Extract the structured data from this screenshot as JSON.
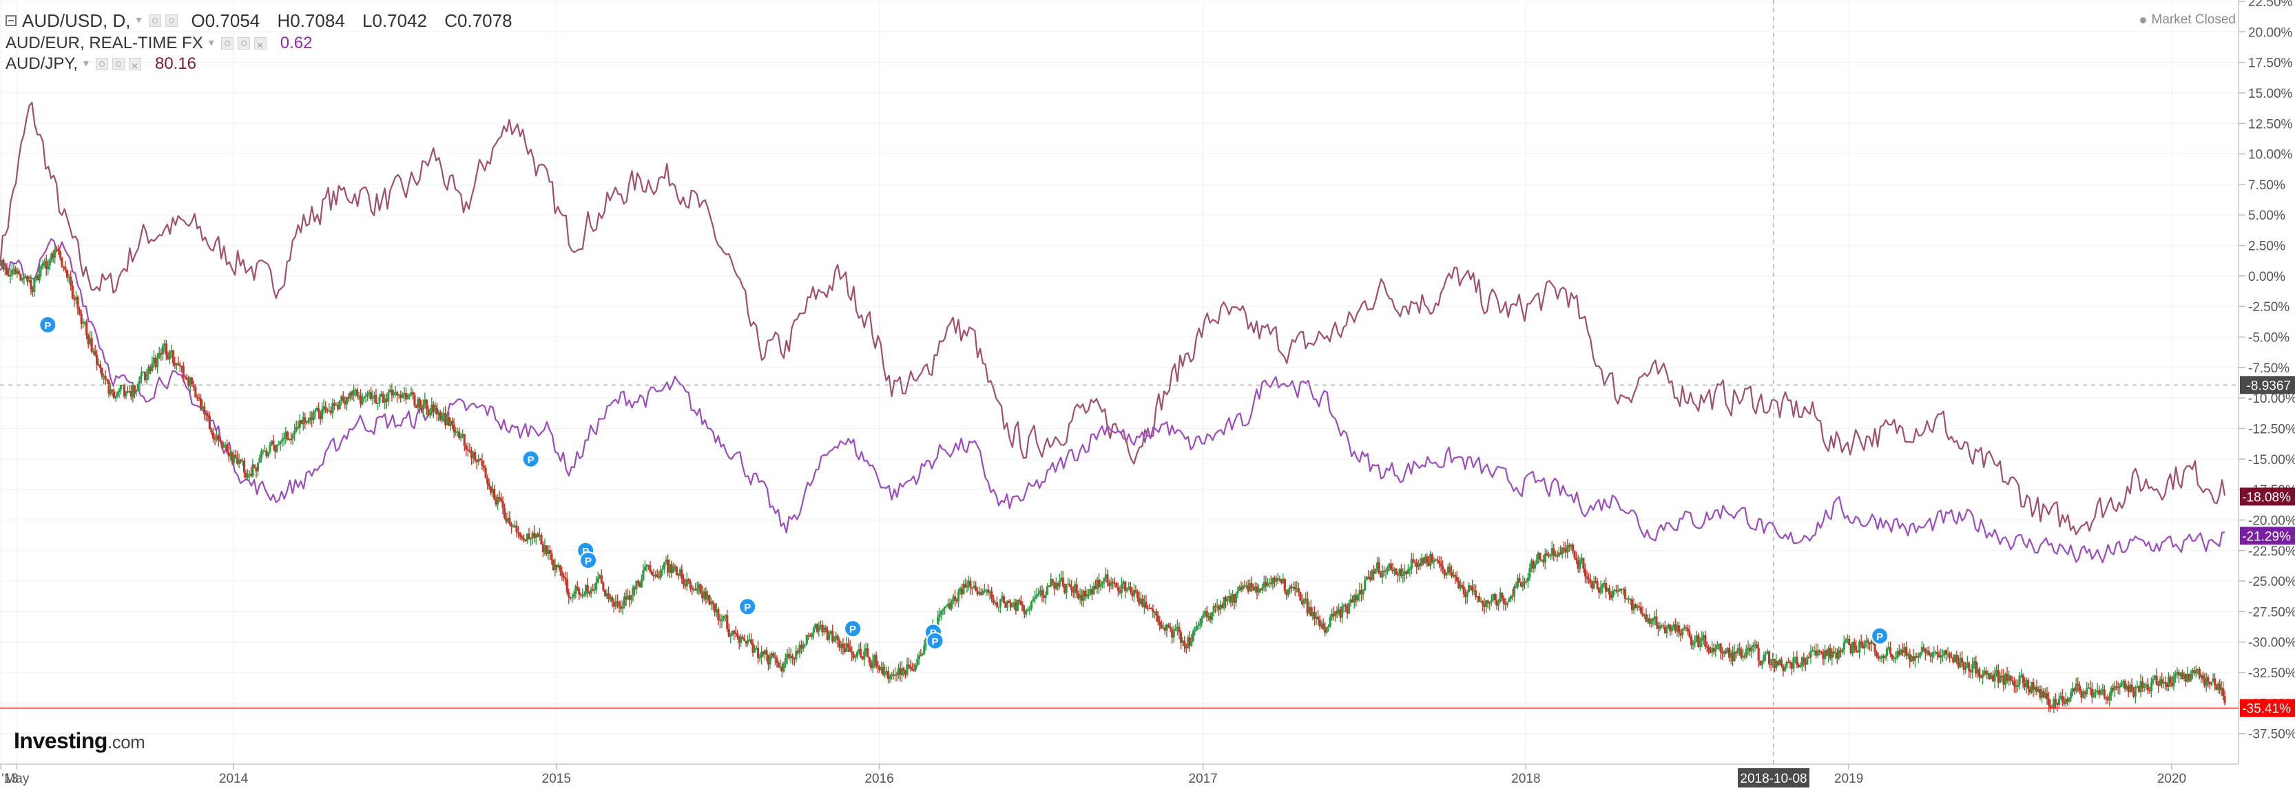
{
  "legend": {
    "main_symbol": "AUD/USD, D,",
    "open": "O0.7054",
    "high": "H0.7084",
    "low": "L0.7042",
    "close": "C0.7078",
    "eur_symbol": "AUD/EUR, REAL-TIME FX",
    "eur_value": "0.62",
    "jpy_symbol": "AUD/JPY,",
    "jpy_value": "80.16"
  },
  "status": {
    "market": "Market Closed"
  },
  "logo": {
    "main": "Investing",
    "suffix": ".com"
  },
  "colors": {
    "up": "#26a69a",
    "down": "#ef5350",
    "candle_up": "#2e9b45",
    "candle_down": "#c0392b",
    "eur": "#9b4dbb",
    "jpy": "#a05068",
    "badge_usd": "#ff0000",
    "badge_eur": "#7b1fa2",
    "badge_jpy": "#7a0f2d",
    "marker": "#2196f3",
    "grid": "#efefef",
    "axis_text": "#555555"
  },
  "crosshair": {
    "price_label": "-8.9367",
    "date_label": "2018-10-08"
  },
  "chart_data": {
    "type": "line",
    "title": "",
    "ylabel": "",
    "xlabel": "",
    "y_unit": "percent change",
    "ylim": [
      -40,
      22.5
    ],
    "xlim": [
      "2013-04-12",
      "2020-03-15"
    ],
    "y_tick_labels": [
      "22.50%",
      "20.00%",
      "17.50%",
      "15.00%",
      "12.50%",
      "10.00%",
      "7.50%",
      "5.00%",
      "2.50%",
      "0.00%",
      "-2.50%",
      "-5.00%",
      "-7.50%",
      "-10.00%",
      "-12.50%",
      "-15.00%",
      "-17.50%",
      "-20.00%",
      "-22.50%",
      "-25.00%",
      "-27.50%",
      "-30.00%",
      "-32.50%",
      "-35.00%",
      "-37.50%"
    ],
    "y_tick_values": [
      22.5,
      20,
      17.5,
      15,
      12.5,
      10,
      7.5,
      5,
      2.5,
      0,
      -2.5,
      -5,
      -7.5,
      -10,
      -12.5,
      -15,
      -17.5,
      -20,
      -22.5,
      -25,
      -27.5,
      -30,
      -32.5,
      -35,
      -37.5
    ],
    "x_tick_labels": [
      "'13",
      "May",
      "2014",
      "2015",
      "2016",
      "2017",
      "2018",
      "2019",
      "2020"
    ],
    "x_tick_dates": [
      "2013-04-13",
      "2013-05-01",
      "2014-01-01",
      "2015-01-01",
      "2016-01-01",
      "2017-01-01",
      "2018-01-01",
      "2019-01-01",
      "2020-01-01"
    ],
    "grid": true,
    "series": [
      {
        "name": "AUD/USD",
        "style": "candles",
        "x": [
          "2013-04-12",
          "2013-05-15",
          "2013-06-15",
          "2013-07-15",
          "2013-08-15",
          "2013-09-15",
          "2013-10-15",
          "2013-11-15",
          "2013-12-15",
          "2014-01-15",
          "2014-02-15",
          "2014-03-15",
          "2014-04-15",
          "2014-05-15",
          "2014-06-15",
          "2014-07-15",
          "2014-08-15",
          "2014-09-15",
          "2014-10-15",
          "2014-11-15",
          "2014-12-15",
          "2015-01-15",
          "2015-02-15",
          "2015-03-15",
          "2015-04-15",
          "2015-05-15",
          "2015-06-15",
          "2015-07-15",
          "2015-08-15",
          "2015-09-15",
          "2015-10-15",
          "2015-11-15",
          "2015-12-15",
          "2016-01-15",
          "2016-02-15",
          "2016-03-15",
          "2016-04-15",
          "2016-05-15",
          "2016-06-15",
          "2016-07-15",
          "2016-08-15",
          "2016-09-15",
          "2016-10-15",
          "2016-11-15",
          "2016-12-15",
          "2017-01-15",
          "2017-02-15",
          "2017-03-15",
          "2017-04-15",
          "2017-05-15",
          "2017-06-15",
          "2017-07-15",
          "2017-08-15",
          "2017-09-15",
          "2017-10-15",
          "2017-11-15",
          "2017-12-15",
          "2018-01-15",
          "2018-02-15",
          "2018-03-15",
          "2018-04-15",
          "2018-05-15",
          "2018-06-15",
          "2018-07-15",
          "2018-08-15",
          "2018-09-15",
          "2018-10-15",
          "2018-11-15",
          "2018-12-15",
          "2019-01-15",
          "2019-02-15",
          "2019-03-15",
          "2019-04-15",
          "2019-05-15",
          "2019-06-15",
          "2019-07-15",
          "2019-08-15",
          "2019-09-15",
          "2019-10-15",
          "2019-11-15",
          "2019-12-15",
          "2020-01-15",
          "2020-02-15",
          "2020-03-01"
        ],
        "y": [
          1,
          -1,
          2,
          -4,
          -10,
          -9,
          -6,
          -9,
          -14,
          -16,
          -14,
          -12,
          -11,
          -10,
          -10,
          -10,
          -11,
          -13,
          -17,
          -21,
          -22,
          -26,
          -25,
          -27,
          -24,
          -24,
          -26,
          -29,
          -31,
          -32,
          -29,
          -30,
          -31,
          -33,
          -31,
          -27,
          -25,
          -27,
          -27,
          -25,
          -26,
          -25,
          -26,
          -29,
          -30,
          -27,
          -26,
          -25,
          -26,
          -29,
          -27,
          -24,
          -24,
          -23,
          -25,
          -27,
          -26,
          -23,
          -22,
          -25,
          -26,
          -28,
          -29,
          -30,
          -31,
          -31,
          -32,
          -31,
          -31,
          -30,
          -31,
          -31,
          -31,
          -32,
          -33,
          -33,
          -35,
          -34,
          -34,
          -34,
          -33,
          -33,
          -33,
          -35
        ]
      },
      {
        "name": "AUD/EUR",
        "style": "line",
        "x": [
          "2013-04-12",
          "2013-05-15",
          "2013-06-15",
          "2013-07-15",
          "2013-08-15",
          "2013-09-15",
          "2013-10-15",
          "2013-11-15",
          "2013-12-15",
          "2014-01-15",
          "2014-02-15",
          "2014-03-15",
          "2014-04-15",
          "2014-05-15",
          "2014-06-15",
          "2014-07-15",
          "2014-08-15",
          "2014-09-15",
          "2014-10-15",
          "2014-11-15",
          "2014-12-15",
          "2015-01-15",
          "2015-02-15",
          "2015-03-15",
          "2015-04-15",
          "2015-05-15",
          "2015-06-15",
          "2015-07-15",
          "2015-08-15",
          "2015-09-15",
          "2015-10-15",
          "2015-11-15",
          "2015-12-15",
          "2016-01-15",
          "2016-02-15",
          "2016-03-15",
          "2016-04-15",
          "2016-05-15",
          "2016-06-15",
          "2016-07-15",
          "2016-08-15",
          "2016-09-15",
          "2016-10-15",
          "2016-11-15",
          "2016-12-15",
          "2017-01-15",
          "2017-02-15",
          "2017-03-15",
          "2017-04-15",
          "2017-05-15",
          "2017-06-15",
          "2017-07-15",
          "2017-08-15",
          "2017-09-15",
          "2017-10-15",
          "2017-11-15",
          "2017-12-15",
          "2018-01-15",
          "2018-02-15",
          "2018-03-15",
          "2018-04-15",
          "2018-05-15",
          "2018-06-15",
          "2018-07-15",
          "2018-08-15",
          "2018-09-15",
          "2018-10-15",
          "2018-11-15",
          "2018-12-15",
          "2019-01-15",
          "2019-02-15",
          "2019-03-15",
          "2019-04-15",
          "2019-05-15",
          "2019-06-15",
          "2019-07-15",
          "2019-08-15",
          "2019-09-15",
          "2019-10-15",
          "2019-11-15",
          "2019-12-15",
          "2020-01-15",
          "2020-02-15",
          "2020-03-01"
        ],
        "y": [
          1,
          0,
          3,
          -2,
          -8,
          -10,
          -8,
          -10,
          -13,
          -17,
          -18,
          -17,
          -15,
          -12,
          -12,
          -12,
          -11,
          -11,
          -11,
          -13,
          -12,
          -16,
          -12,
          -10,
          -10,
          -9,
          -12,
          -14,
          -17,
          -21,
          -17,
          -13,
          -15,
          -18,
          -16,
          -14,
          -14,
          -19,
          -18,
          -16,
          -14,
          -12,
          -14,
          -12,
          -14,
          -13,
          -12,
          -8,
          -9,
          -10,
          -14,
          -16,
          -16,
          -15,
          -15,
          -16,
          -17,
          -17,
          -18,
          -19,
          -18,
          -21,
          -20,
          -20,
          -19,
          -20,
          -22,
          -21,
          -19,
          -20,
          -20,
          -21,
          -20,
          -20,
          -21,
          -22,
          -22,
          -23,
          -23,
          -22,
          -22,
          -22,
          -22,
          -21
        ]
      },
      {
        "name": "AUD/JPY",
        "style": "line",
        "x": [
          "2013-04-12",
          "2013-05-15",
          "2013-06-15",
          "2013-07-15",
          "2013-08-15",
          "2013-09-15",
          "2013-10-15",
          "2013-11-15",
          "2013-12-15",
          "2014-01-15",
          "2014-02-15",
          "2014-03-15",
          "2014-04-15",
          "2014-05-15",
          "2014-06-15",
          "2014-07-15",
          "2014-08-15",
          "2014-09-15",
          "2014-10-15",
          "2014-11-15",
          "2014-12-15",
          "2015-01-15",
          "2015-02-15",
          "2015-03-15",
          "2015-04-15",
          "2015-05-15",
          "2015-06-15",
          "2015-07-15",
          "2015-08-15",
          "2015-09-15",
          "2015-10-15",
          "2015-11-15",
          "2015-12-15",
          "2016-01-15",
          "2016-02-15",
          "2016-03-15",
          "2016-04-15",
          "2016-05-15",
          "2016-06-15",
          "2016-07-15",
          "2016-08-15",
          "2016-09-15",
          "2016-10-15",
          "2016-11-15",
          "2016-12-15",
          "2017-01-15",
          "2017-02-15",
          "2017-03-15",
          "2017-04-15",
          "2017-05-15",
          "2017-06-15",
          "2017-07-15",
          "2017-08-15",
          "2017-09-15",
          "2017-10-15",
          "2017-11-15",
          "2017-12-15",
          "2018-01-15",
          "2018-02-15",
          "2018-03-15",
          "2018-04-15",
          "2018-05-15",
          "2018-06-15",
          "2018-07-15",
          "2018-08-15",
          "2018-09-15",
          "2018-10-15",
          "2018-11-15",
          "2018-12-15",
          "2019-01-15",
          "2019-02-15",
          "2019-03-15",
          "2019-04-15",
          "2019-05-15",
          "2019-06-15",
          "2019-07-15",
          "2019-08-15",
          "2019-09-15",
          "2019-10-15",
          "2019-11-15",
          "2019-12-15",
          "2020-01-15",
          "2020-02-15",
          "2020-03-01"
        ],
        "y": [
          2,
          14,
          6,
          0,
          -1,
          3,
          4,
          4,
          2,
          1,
          -1,
          4,
          6,
          7,
          6,
          7,
          10,
          5,
          10,
          13,
          8,
          3,
          5,
          7,
          8,
          8,
          5,
          1,
          -6,
          -6,
          -2,
          0,
          -3,
          -9,
          -9,
          -4,
          -5,
          -12,
          -14,
          -13,
          -11,
          -12,
          -14,
          -10,
          -6,
          -3,
          -4,
          -5,
          -6,
          -5,
          -4,
          -1,
          -2,
          -2,
          0,
          -2,
          -3,
          -2,
          -1,
          -6,
          -10,
          -8,
          -9,
          -10,
          -10,
          -10,
          -11,
          -11,
          -14,
          -13,
          -13,
          -12,
          -12,
          -15,
          -16,
          -18,
          -20,
          -20,
          -19,
          -17,
          -17,
          -16,
          -17,
          -18
        ]
      }
    ],
    "last_value_badges": [
      {
        "series": "AUD/USD",
        "label": "-35.41%",
        "value": -35.41
      },
      {
        "series": "AUD/EUR",
        "label": "-21.29%",
        "value": -21.29
      },
      {
        "series": "AUD/JPY",
        "label": "-18.08%",
        "value": -18.08
      }
    ],
    "event_markers": {
      "label": "P",
      "points": [
        {
          "date": "2013-06-05",
          "y": -4
        },
        {
          "date": "2014-12-03",
          "y": -15
        },
        {
          "date": "2015-02-03",
          "y": -22.5
        },
        {
          "date": "2015-02-06",
          "y": -23.3
        },
        {
          "date": "2015-08-05",
          "y": -27.1
        },
        {
          "date": "2015-12-02",
          "y": -28.9
        },
        {
          "date": "2016-03-02",
          "y": -29.2
        },
        {
          "date": "2016-03-04",
          "y": -29.9
        },
        {
          "date": "2019-02-05",
          "y": -29.5
        }
      ]
    }
  }
}
